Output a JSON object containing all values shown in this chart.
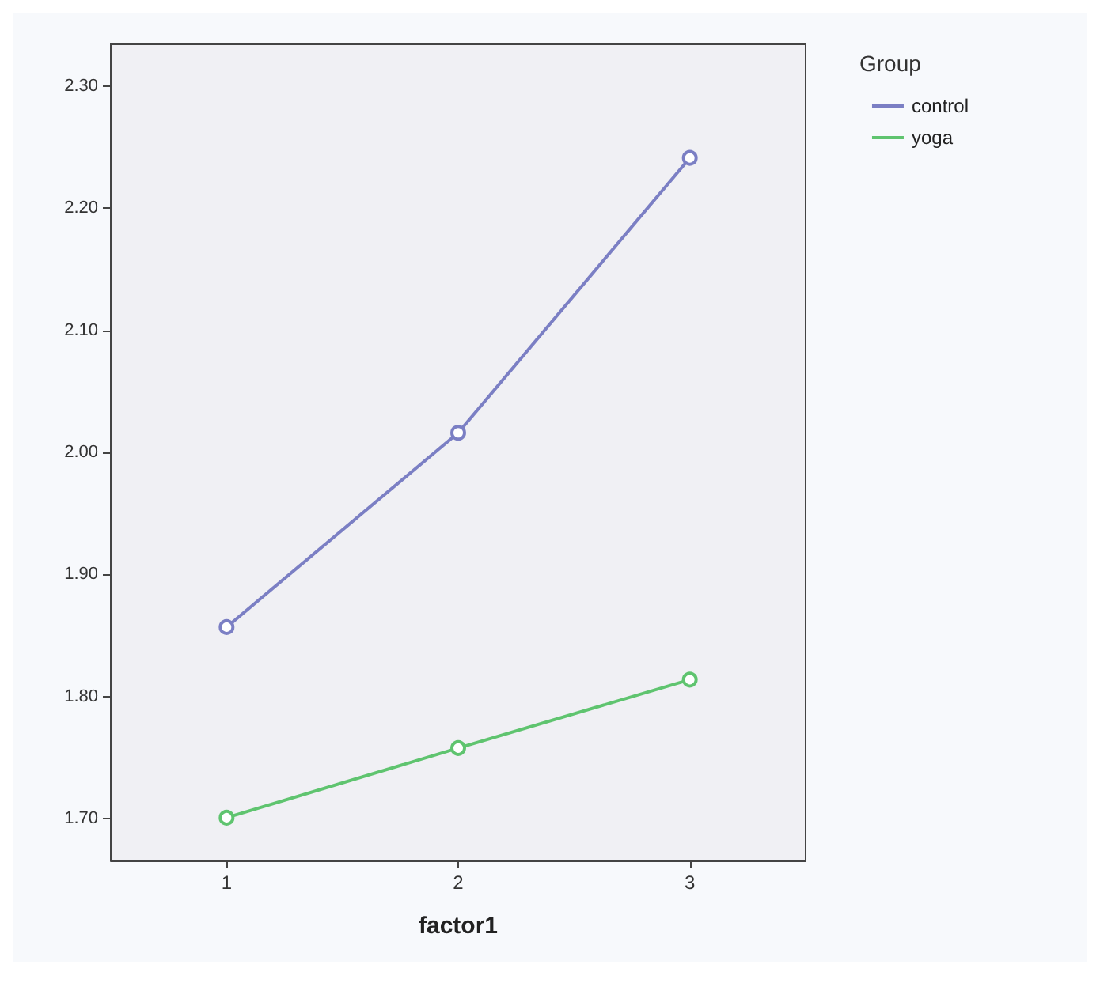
{
  "chart_data": {
    "type": "line",
    "xlabel": "factor1",
    "legend_title": "Group",
    "legend": "top right",
    "marker": "circle",
    "line_style": "solid",
    "grid": false,
    "categories": [
      "1",
      "2",
      "3"
    ],
    "ylim": [
      1.666,
      2.334
    ],
    "yticks": [
      {
        "value": 1.7,
        "label": "1.70"
      },
      {
        "value": 1.8,
        "label": "1.80"
      },
      {
        "value": 1.9,
        "label": "1.90"
      },
      {
        "value": 2.0,
        "label": "2.00"
      },
      {
        "value": 2.1,
        "label": "2.10"
      },
      {
        "value": 2.2,
        "label": "2.20"
      },
      {
        "value": 2.3,
        "label": "2.30"
      }
    ],
    "series": [
      {
        "name": "control",
        "color": "#7b7fc4",
        "values": [
          1.857,
          2.016,
          2.241
        ]
      },
      {
        "name": "yoga",
        "color": "#5fc46f",
        "values": [
          1.701,
          1.758,
          1.814
        ]
      }
    ]
  }
}
